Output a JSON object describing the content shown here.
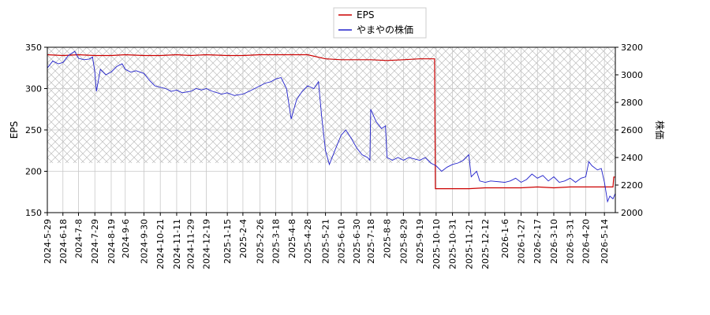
{
  "chart_data": {
    "type": "line",
    "legend": {
      "placement": "top-center",
      "entries": [
        "EPS",
        "やまやの株価"
      ]
    },
    "grid": true,
    "hatch_band": {
      "x_from": "2024-05-29",
      "x_to": "2026-05-28",
      "y_left_from": 210,
      "y_left_to": 350
    },
    "x_dates": [
      "2024-5-29",
      "2024-6-18",
      "2024-7-8",
      "2024-7-29",
      "2024-8-19",
      "2024-9-6",
      "2024-9-30",
      "2024-10-21",
      "2024-11-11",
      "2024-11-29",
      "2024-12-19",
      "2025-1-15",
      "2025-2-4",
      "2025-2-26",
      "2025-3-18",
      "2025-4-8",
      "2025-4-28",
      "2025-5-21",
      "2025-6-10",
      "2025-6-30",
      "2025-7-18",
      "2025-8-8",
      "2025-8-29",
      "2025-9-19",
      "2025-10-10",
      "2025-10-31",
      "2025-11-21",
      "2025-12-12",
      "2026-1-6",
      "2026-1-27",
      "2026-2-17",
      "2026-3-10",
      "2026-3-31",
      "2026-4-20",
      "2026-5-14"
    ],
    "x_range": [
      "2024-05-29",
      "2026-05-28"
    ],
    "y_left": {
      "label": "EPS",
      "range": [
        150,
        350
      ],
      "ticks": [
        150,
        200,
        250,
        300,
        350
      ]
    },
    "y_right": {
      "label": "株価",
      "range": [
        2000,
        3200
      ],
      "ticks": [
        2000,
        2200,
        2400,
        2600,
        2800,
        3000,
        3200
      ]
    },
    "series": [
      {
        "name": "EPS",
        "axis": "left",
        "color": "#cc0000",
        "points": [
          [
            "2024-05-29",
            341
          ],
          [
            "2024-06-18",
            340
          ],
          [
            "2024-07-08",
            341
          ],
          [
            "2024-07-29",
            340
          ],
          [
            "2024-08-19",
            340
          ],
          [
            "2024-09-06",
            341
          ],
          [
            "2024-09-30",
            340
          ],
          [
            "2024-10-21",
            340
          ],
          [
            "2024-11-11",
            341
          ],
          [
            "2024-11-29",
            340
          ],
          [
            "2024-12-19",
            341
          ],
          [
            "2025-01-15",
            340
          ],
          [
            "2025-02-04",
            340
          ],
          [
            "2025-02-26",
            341
          ],
          [
            "2025-03-18",
            341
          ],
          [
            "2025-04-08",
            341
          ],
          [
            "2025-04-28",
            341
          ],
          [
            "2025-05-21",
            336
          ],
          [
            "2025-06-10",
            335
          ],
          [
            "2025-06-30",
            335
          ],
          [
            "2025-07-18",
            335
          ],
          [
            "2025-08-08",
            334
          ],
          [
            "2025-08-29",
            335
          ],
          [
            "2025-09-19",
            336
          ],
          [
            "2025-10-08",
            336
          ],
          [
            "2025-10-09",
            179
          ],
          [
            "2025-10-31",
            179
          ],
          [
            "2025-11-21",
            179
          ],
          [
            "2025-12-12",
            180
          ],
          [
            "2026-01-06",
            180
          ],
          [
            "2026-01-27",
            180
          ],
          [
            "2026-02-17",
            181
          ],
          [
            "2026-03-10",
            180
          ],
          [
            "2026-03-31",
            181
          ],
          [
            "2026-04-20",
            181
          ],
          [
            "2026-05-14",
            181
          ],
          [
            "2026-05-25",
            181
          ],
          [
            "2026-05-26",
            193
          ],
          [
            "2026-05-28",
            193
          ]
        ]
      },
      {
        "name": "やまやの株価",
        "axis": "right",
        "color": "#2222cc",
        "points": [
          [
            "2024-05-29",
            3050
          ],
          [
            "2024-06-05",
            3100
          ],
          [
            "2024-06-12",
            3080
          ],
          [
            "2024-06-18",
            3090
          ],
          [
            "2024-06-25",
            3140
          ],
          [
            "2024-07-03",
            3170
          ],
          [
            "2024-07-08",
            3120
          ],
          [
            "2024-07-15",
            3110
          ],
          [
            "2024-07-22",
            3115
          ],
          [
            "2024-07-26",
            3130
          ],
          [
            "2024-07-29",
            3020
          ],
          [
            "2024-07-31",
            2880
          ],
          [
            "2024-08-05",
            3040
          ],
          [
            "2024-08-12",
            3000
          ],
          [
            "2024-08-19",
            3020
          ],
          [
            "2024-08-26",
            3060
          ],
          [
            "2024-09-02",
            3080
          ],
          [
            "2024-09-06",
            3040
          ],
          [
            "2024-09-13",
            3020
          ],
          [
            "2024-09-20",
            3030
          ],
          [
            "2024-09-30",
            3010
          ],
          [
            "2024-10-07",
            2960
          ],
          [
            "2024-10-14",
            2920
          ],
          [
            "2024-10-21",
            2910
          ],
          [
            "2024-10-28",
            2900
          ],
          [
            "2024-11-04",
            2880
          ],
          [
            "2024-11-11",
            2890
          ],
          [
            "2024-11-18",
            2870
          ],
          [
            "2024-11-29",
            2880
          ],
          [
            "2024-12-06",
            2900
          ],
          [
            "2024-12-13",
            2890
          ],
          [
            "2024-12-19",
            2900
          ],
          [
            "2024-12-27",
            2880
          ],
          [
            "2025-01-08",
            2860
          ],
          [
            "2025-01-15",
            2870
          ],
          [
            "2025-01-24",
            2850
          ],
          [
            "2025-02-04",
            2860
          ],
          [
            "2025-02-12",
            2880
          ],
          [
            "2025-02-19",
            2900
          ],
          [
            "2025-02-26",
            2920
          ],
          [
            "2025-03-05",
            2940
          ],
          [
            "2025-03-12",
            2950
          ],
          [
            "2025-03-18",
            2970
          ],
          [
            "2025-03-25",
            2980
          ],
          [
            "2025-04-01",
            2900
          ],
          [
            "2025-04-07",
            2680
          ],
          [
            "2025-04-14",
            2820
          ],
          [
            "2025-04-21",
            2880
          ],
          [
            "2025-04-28",
            2920
          ],
          [
            "2025-05-06",
            2900
          ],
          [
            "2025-05-12",
            2950
          ],
          [
            "2025-05-16",
            2700
          ],
          [
            "2025-05-21",
            2450
          ],
          [
            "2025-05-26",
            2350
          ],
          [
            "2025-06-02",
            2450
          ],
          [
            "2025-06-10",
            2560
          ],
          [
            "2025-06-16",
            2600
          ],
          [
            "2025-06-23",
            2540
          ],
          [
            "2025-06-30",
            2470
          ],
          [
            "2025-07-07",
            2420
          ],
          [
            "2025-07-14",
            2400
          ],
          [
            "2025-07-17",
            2380
          ],
          [
            "2025-07-18",
            2750
          ],
          [
            "2025-07-25",
            2660
          ],
          [
            "2025-08-01",
            2610
          ],
          [
            "2025-08-06",
            2630
          ],
          [
            "2025-08-08",
            2400
          ],
          [
            "2025-08-15",
            2380
          ],
          [
            "2025-08-22",
            2400
          ],
          [
            "2025-08-29",
            2380
          ],
          [
            "2025-09-05",
            2400
          ],
          [
            "2025-09-12",
            2390
          ],
          [
            "2025-09-19",
            2380
          ],
          [
            "2025-09-26",
            2400
          ],
          [
            "2025-10-03",
            2360
          ],
          [
            "2025-10-10",
            2340
          ],
          [
            "2025-10-17",
            2300
          ],
          [
            "2025-10-24",
            2330
          ],
          [
            "2025-10-31",
            2350
          ],
          [
            "2025-11-07",
            2360
          ],
          [
            "2025-11-14",
            2380
          ],
          [
            "2025-11-21",
            2420
          ],
          [
            "2025-11-24",
            2260
          ],
          [
            "2025-12-01",
            2300
          ],
          [
            "2025-12-05",
            2230
          ],
          [
            "2025-12-12",
            2220
          ],
          [
            "2025-12-19",
            2230
          ],
          [
            "2026-01-06",
            2220
          ],
          [
            "2026-01-13",
            2230
          ],
          [
            "2026-01-20",
            2250
          ],
          [
            "2026-01-27",
            2220
          ],
          [
            "2026-02-03",
            2240
          ],
          [
            "2026-02-10",
            2280
          ],
          [
            "2026-02-17",
            2250
          ],
          [
            "2026-02-24",
            2270
          ],
          [
            "2026-03-03",
            2230
          ],
          [
            "2026-03-10",
            2260
          ],
          [
            "2026-03-17",
            2220
          ],
          [
            "2026-03-24",
            2230
          ],
          [
            "2026-03-31",
            2250
          ],
          [
            "2026-04-07",
            2220
          ],
          [
            "2026-04-14",
            2250
          ],
          [
            "2026-04-20",
            2260
          ],
          [
            "2026-04-24",
            2370
          ],
          [
            "2026-04-28",
            2340
          ],
          [
            "2026-05-05",
            2310
          ],
          [
            "2026-05-10",
            2320
          ],
          [
            "2026-05-14",
            2220
          ],
          [
            "2026-05-18",
            2080
          ],
          [
            "2026-05-21",
            2120
          ],
          [
            "2026-05-25",
            2100
          ],
          [
            "2026-05-28",
            2140
          ]
        ]
      }
    ]
  }
}
